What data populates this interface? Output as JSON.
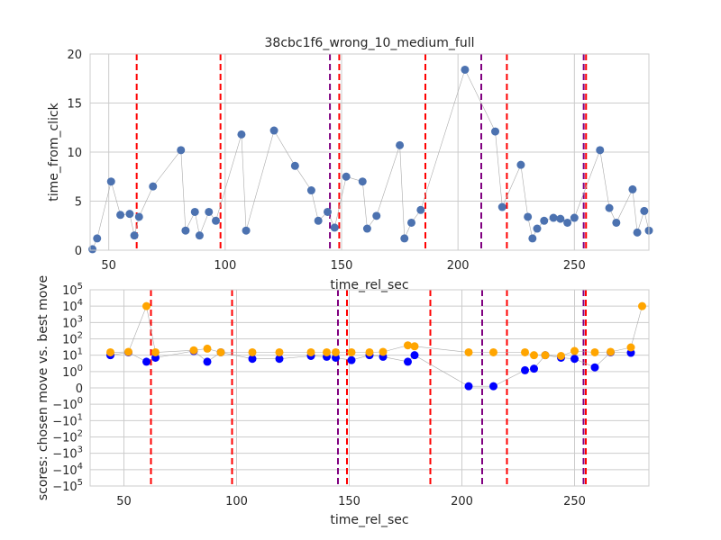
{
  "chart_data": [
    {
      "type": "scatter",
      "title": "38cbc1f6_wrong_10_medium_full",
      "xlabel": "time_rel_sec",
      "ylabel": "time_from_click",
      "xlim": [
        42,
        282
      ],
      "ylim": [
        0,
        20
      ],
      "xticks": [
        "50",
        "100",
        "150",
        "200",
        "250"
      ],
      "yticks": [
        "0",
        "5",
        "10",
        "15",
        "20"
      ],
      "grid": true,
      "series": [
        {
          "color": "#4c72b0",
          "x": [
            43,
            45,
            51,
            55,
            59,
            61,
            63,
            69,
            81,
            83,
            87,
            89,
            93,
            96,
            107,
            109,
            121,
            130,
            137,
            140,
            144,
            147,
            152,
            159,
            161,
            165,
            175,
            177,
            180,
            184,
            203,
            216,
            219,
            227,
            230,
            232,
            234,
            237,
            241,
            244,
            247,
            250,
            261,
            265,
            268,
            275,
            277,
            280,
            282
          ],
          "y": [
            0.1,
            1.2,
            7.0,
            3.6,
            3.7,
            1.5,
            3.4,
            6.5,
            10.2,
            2.0,
            3.9,
            1.5,
            3.9,
            3.0,
            11.8,
            2.0,
            12.2,
            8.6,
            6.1,
            3.0,
            3.9,
            2.3,
            7.5,
            7.0,
            2.2,
            3.5,
            10.7,
            1.2,
            2.8,
            4.1,
            18.4,
            12.1,
            4.4,
            8.7,
            3.4,
            1.2,
            2.2,
            3.0,
            3.3,
            3.2,
            2.8,
            3.3,
            10.2,
            4.3,
            2.8,
            6.2,
            1.8,
            4.0,
            2.0
          ]
        }
      ],
      "vlines": [
        {
          "x": 62,
          "color": "#ff0000"
        },
        {
          "x": 98,
          "color": "#ff0000"
        },
        {
          "x": 145,
          "color": "#800080"
        },
        {
          "x": 149,
          "color": "#ff0000"
        },
        {
          "x": 186,
          "color": "#ff0000"
        },
        {
          "x": 210,
          "color": "#800080"
        },
        {
          "x": 221,
          "color": "#ff0000"
        },
        {
          "x": 254,
          "color": "#800080"
        },
        {
          "x": 255,
          "color": "#ff0000"
        }
      ]
    },
    {
      "type": "scatter",
      "title": "",
      "xlabel": "time_rel_sec",
      "ylabel": "scores: chosen move vs. best move",
      "xlim": [
        35,
        283
      ],
      "ylim": [
        -100000,
        100000
      ],
      "yscale": "symlog",
      "xticks": [
        "50",
        "100",
        "150",
        "200",
        "250"
      ],
      "yticks": [
        "10^5",
        "10^4",
        "10^3",
        "10^2",
        "10^1",
        "10^0",
        "0",
        "-10^0",
        "-10^1",
        "-10^2",
        "-10^3",
        "-10^4",
        "-10^5"
      ],
      "grid": true,
      "series": [
        {
          "color": "#0000ff",
          "x": [
            44,
            52,
            60,
            64,
            81,
            87,
            93,
            107,
            119,
            133,
            140,
            144,
            151,
            159,
            165,
            176,
            179,
            203,
            214,
            228,
            232,
            237,
            244,
            250,
            259,
            266,
            275
          ],
          "y": [
            10,
            15,
            4,
            7,
            18,
            4,
            15,
            6,
            6,
            9,
            8,
            7,
            5,
            10,
            8,
            4,
            10,
            0.1,
            0.1,
            1.2,
            1.5,
            10,
            7,
            6,
            1.8,
            15,
            14
          ]
        },
        {
          "color": "#ffa500",
          "x": [
            44,
            52,
            60,
            64,
            81,
            87,
            93,
            107,
            119,
            133,
            140,
            144,
            151,
            159,
            165,
            176,
            179,
            203,
            214,
            228,
            232,
            237,
            244,
            250,
            259,
            266,
            275,
            280
          ],
          "y": [
            15,
            16,
            10000,
            15,
            20,
            25,
            15,
            15,
            15,
            15,
            15,
            15,
            15,
            15,
            16,
            40,
            35,
            15,
            15,
            15,
            10,
            10,
            9,
            18,
            15,
            16,
            30,
            10000
          ]
        }
      ],
      "vlines": [
        {
          "x": 62,
          "color": "#ff0000"
        },
        {
          "x": 98,
          "color": "#ff0000"
        },
        {
          "x": 145,
          "color": "#800080"
        },
        {
          "x": 149,
          "color": "#ff0000"
        },
        {
          "x": 186,
          "color": "#ff0000"
        },
        {
          "x": 209,
          "color": "#800080"
        },
        {
          "x": 220,
          "color": "#ff0000"
        },
        {
          "x": 254,
          "color": "#800080"
        },
        {
          "x": 255,
          "color": "#ff0000"
        }
      ]
    }
  ]
}
